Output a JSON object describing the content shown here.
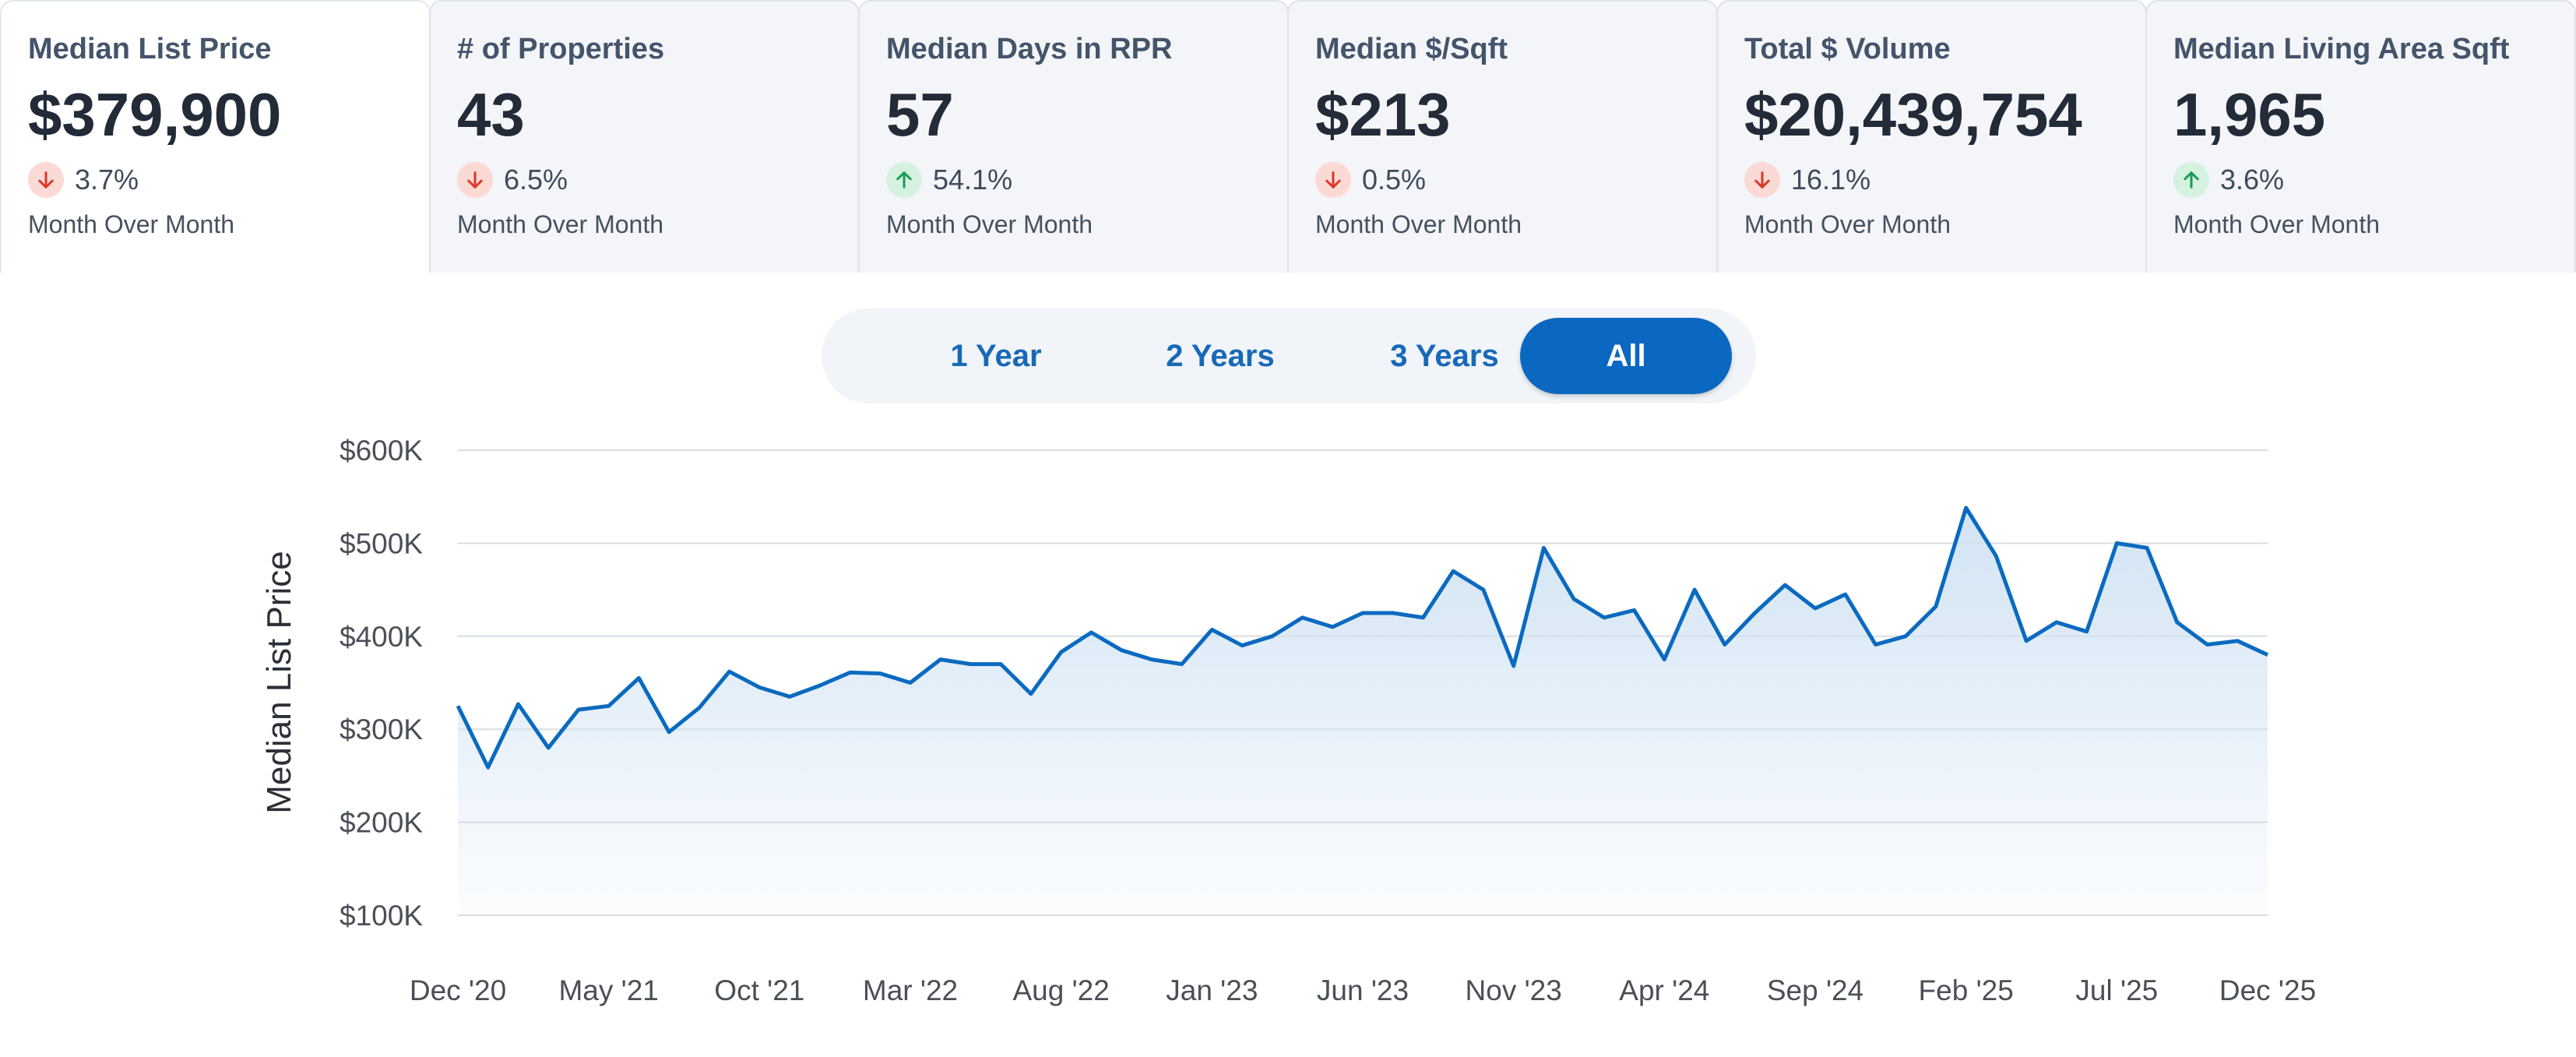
{
  "cards": [
    {
      "title": "Median List Price",
      "value": "$379,900",
      "direction": "down",
      "change": "3.7%",
      "period": "Month Over Month"
    },
    {
      "title": "# of Properties",
      "value": "43",
      "direction": "down",
      "change": "6.5%",
      "period": "Month Over Month"
    },
    {
      "title": "Median Days in RPR",
      "value": "57",
      "direction": "up",
      "change": "54.1%",
      "period": "Month Over Month"
    },
    {
      "title": "Median $/Sqft",
      "value": "$213",
      "direction": "down",
      "change": "0.5%",
      "period": "Month Over Month"
    },
    {
      "title": "Total $ Volume",
      "value": "$20,439,754",
      "direction": "down",
      "change": "16.1%",
      "period": "Month Over Month"
    },
    {
      "title": "Median Living Area Sqft",
      "value": "1,965",
      "direction": "up",
      "change": "3.6%",
      "period": "Month Over Month"
    }
  ],
  "range_selector": {
    "options": [
      "1 Year",
      "2 Years",
      "3 Years",
      "All"
    ],
    "selected": "All"
  },
  "colors": {
    "line": "#0b6ac0",
    "area_top": "#cfe2f3",
    "down_badge": "#fbd9d4",
    "up_badge": "#d5f2e1",
    "down_arrow": "#d93a2b",
    "up_arrow": "#1a9e55",
    "accent": "#0b68c1"
  },
  "chart_data": {
    "type": "area",
    "ylabel": "Median List Price",
    "ylim": [
      100000,
      600000
    ],
    "y_ticks": [
      100000,
      200000,
      300000,
      400000,
      500000,
      600000
    ],
    "y_tick_labels": [
      "$100K",
      "$200K",
      "$300K",
      "$400K",
      "$500K",
      "$600K"
    ],
    "x_tick_labels": [
      "Dec '20",
      "May '21",
      "Oct '21",
      "Mar '22",
      "Aug '22",
      "Jan '23",
      "Jun '23",
      "Nov '23",
      "Apr '24",
      "Sep '24",
      "Feb '25",
      "Jul '25",
      "Dec '25"
    ],
    "grid": true,
    "series": [
      {
        "name": "Median List Price",
        "x": [
          "Dec '20",
          "Jan '21",
          "Feb '21",
          "Mar '21",
          "Apr '21",
          "May '21",
          "Jun '21",
          "Jul '21",
          "Aug '21",
          "Sep '21",
          "Oct '21",
          "Nov '21",
          "Dec '21",
          "Jan '22",
          "Feb '22",
          "Mar '22",
          "Apr '22",
          "May '22",
          "Jun '22",
          "Jul '22",
          "Aug '22",
          "Sep '22",
          "Oct '22",
          "Nov '22",
          "Dec '22",
          "Jan '23",
          "Feb '23",
          "Mar '23",
          "Apr '23",
          "May '23",
          "Jun '23",
          "Jul '23",
          "Aug '23",
          "Sep '23",
          "Oct '23",
          "Nov '23",
          "Dec '23",
          "Jan '24",
          "Feb '24",
          "Mar '24",
          "Apr '24",
          "May '24",
          "Jun '24",
          "Jul '24",
          "Aug '24",
          "Sep '24",
          "Oct '24",
          "Nov '24",
          "Dec '24",
          "Jan '25",
          "Feb '25",
          "Mar '25",
          "Apr '25",
          "May '25",
          "Jun '25",
          "Jul '25",
          "Aug '25",
          "Sep '25",
          "Oct '25",
          "Nov '25",
          "Dec '25"
        ],
        "values": [
          325000,
          259000,
          327000,
          280000,
          321000,
          325000,
          355000,
          297000,
          323000,
          362000,
          345000,
          335000,
          347000,
          361000,
          360000,
          350000,
          375000,
          370000,
          370000,
          338000,
          383000,
          404000,
          385000,
          375000,
          370000,
          407000,
          390000,
          400000,
          420000,
          410000,
          425000,
          425000,
          420000,
          470000,
          450000,
          368000,
          495000,
          440000,
          420000,
          428000,
          375000,
          450000,
          391000,
          425000,
          455000,
          430000,
          445000,
          391000,
          400000,
          432000,
          538000,
          486000,
          395000,
          415000,
          405000,
          500000,
          495000,
          415000,
          391000,
          395000,
          380000
        ]
      }
    ]
  }
}
